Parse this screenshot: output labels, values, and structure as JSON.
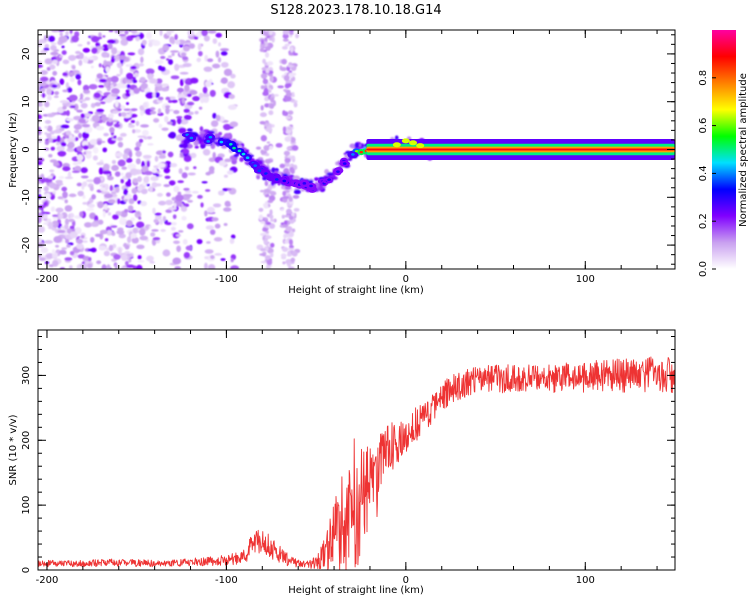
{
  "title": "S128.2023.178.10.18.G14",
  "chart_data": [
    {
      "type": "heatmap",
      "title": "S128.2023.178.10.18.G14",
      "xlabel": "Height of straight line (km)",
      "ylabel": "Frequency (Hz)",
      "xlim": [
        -205,
        150
      ],
      "ylim": [
        -25,
        25
      ],
      "xticks": [
        -200,
        -100,
        0,
        100
      ],
      "yticks": [
        -20,
        -10,
        0,
        10,
        20
      ],
      "colorbar": {
        "label": "Normalized spectral amplitude",
        "ticks": [
          0.0,
          0.2,
          0.4,
          0.6,
          0.8
        ],
        "range": [
          0.0,
          1.0
        ],
        "colors": [
          "#ffffff",
          "#c9a0f0",
          "#8000ff",
          "#0000ff",
          "#00e0ff",
          "#00ff00",
          "#ffff00",
          "#ff8000",
          "#ff0000",
          "#ff00a0"
        ]
      },
      "ridge": {
        "note": "dominant frequency track (normalized amplitude ~0.3-0.9)",
        "x": [
          -122,
          -110,
          -100,
          -95,
          -90,
          -85,
          -80,
          -75,
          -70,
          -65,
          -60,
          -55,
          -50,
          -45,
          -40,
          -35,
          -30,
          -25,
          -20,
          -10,
          0,
          5,
          10,
          20,
          50,
          100,
          150
        ],
        "y": [
          2.5,
          2.0,
          2.0,
          0.5,
          -1.0,
          -3.0,
          -4.5,
          -5.5,
          -6.0,
          -6.5,
          -7.0,
          -7.5,
          -8.0,
          -6.5,
          -5.0,
          -3.0,
          -1.0,
          0.0,
          0.0,
          0.5,
          1.5,
          0.5,
          0.0,
          0.0,
          0.0,
          0.0,
          0.0
        ],
        "amplitude": [
          0.4,
          0.4,
          0.45,
          0.5,
          0.45,
          0.4,
          0.35,
          0.35,
          0.35,
          0.3,
          0.3,
          0.3,
          0.3,
          0.3,
          0.3,
          0.3,
          0.35,
          0.85,
          0.85,
          0.7,
          0.6,
          0.7,
          0.85,
          0.9,
          0.9,
          0.9,
          0.9
        ]
      }
    },
    {
      "type": "line",
      "xlabel": "Height of straight line (km)",
      "ylabel": "SNR (10 * v/v)",
      "xlim": [
        -205,
        150
      ],
      "ylim": [
        0,
        370
      ],
      "xticks": [
        -200,
        -100,
        0,
        100
      ],
      "yticks": [
        0,
        100,
        200,
        300
      ],
      "series": [
        {
          "name": "SNR",
          "color": "#ee3333",
          "x": [
            -205,
            -180,
            -160,
            -140,
            -120,
            -100,
            -90,
            -85,
            -80,
            -75,
            -70,
            -65,
            -60,
            -55,
            -50,
            -45,
            -40,
            -35,
            -30,
            -25,
            -20,
            -15,
            -10,
            -5,
            0,
            5,
            10,
            15,
            20,
            25,
            30,
            40,
            50,
            60,
            80,
            100,
            120,
            140,
            150
          ],
          "y": [
            10,
            10,
            12,
            10,
            12,
            15,
            22,
            40,
            45,
            35,
            25,
            15,
            10,
            8,
            12,
            25,
            60,
            100,
            130,
            145,
            150,
            170,
            185,
            195,
            205,
            225,
            235,
            250,
            265,
            280,
            285,
            292,
            295,
            295,
            295,
            298,
            300,
            302,
            300
          ],
          "spread": [
            5,
            5,
            6,
            5,
            6,
            8,
            12,
            20,
            22,
            18,
            14,
            10,
            6,
            6,
            10,
            25,
            45,
            60,
            70,
            65,
            55,
            50,
            40,
            35,
            30,
            28,
            25,
            22,
            22,
            22,
            22,
            22,
            22,
            22,
            22,
            24,
            26,
            28,
            28
          ]
        }
      ]
    }
  ]
}
